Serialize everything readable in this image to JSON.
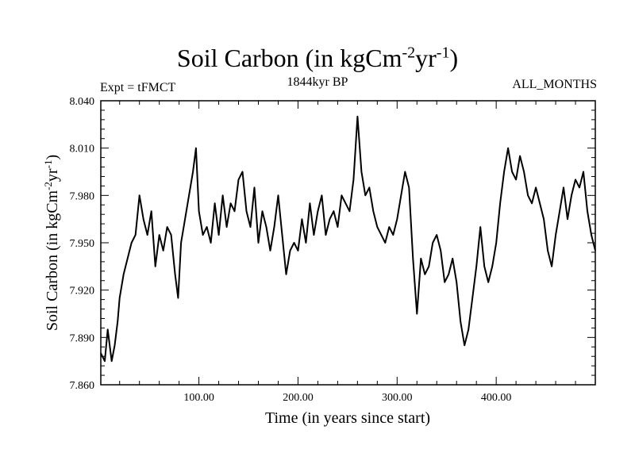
{
  "header": {
    "title": "Soil Carbon (in kgCm",
    "title_exp1": "-2",
    "title_mid": "yr",
    "title_exp2": "-1",
    "title_end": ")",
    "experiment": "Expt = tFMCT",
    "subtitle": "1844kyr BP",
    "months": "ALL_MONTHS"
  },
  "chart_data": {
    "type": "line",
    "title": "Soil Carbon (in kgCm-2yr-1)",
    "xlabel": "Time (in years since start)",
    "ylabel": "Soil Carbon (in kgCm-2yr-1)",
    "ylabel_text": "Soil Carbon (in kgCm",
    "ylabel_exp1": "-2",
    "ylabel_mid": "yr",
    "ylabel_exp2": "-1",
    "ylabel_end": ")",
    "xlim": [
      1,
      500
    ],
    "ylim": [
      7.86,
      8.04
    ],
    "xticks": [
      100,
      200,
      300,
      400
    ],
    "xtick_labels": [
      "100.00",
      "200.00",
      "300.00",
      "400.00"
    ],
    "yticks": [
      7.86,
      7.89,
      7.92,
      7.95,
      7.98,
      8.01,
      8.04
    ],
    "ytick_labels": [
      "7.860",
      "7.890",
      "7.920",
      "7.950",
      "7.980",
      "8.010",
      "8.040"
    ],
    "series": [
      {
        "name": "Soil Carbon",
        "x": [
          1,
          5,
          8,
          12,
          15,
          18,
          20,
          24,
          28,
          32,
          36,
          40,
          44,
          48,
          52,
          56,
          60,
          64,
          68,
          72,
          76,
          79,
          82,
          86,
          90,
          94,
          97,
          100,
          104,
          108,
          112,
          116,
          120,
          124,
          128,
          132,
          136,
          140,
          144,
          148,
          152,
          156,
          160,
          164,
          168,
          172,
          176,
          180,
          184,
          188,
          192,
          196,
          200,
          204,
          208,
          212,
          216,
          220,
          224,
          228,
          232,
          236,
          240,
          244,
          248,
          252,
          256,
          260,
          264,
          268,
          272,
          276,
          280,
          284,
          288,
          292,
          296,
          300,
          304,
          308,
          312,
          316,
          320,
          324,
          328,
          332,
          336,
          340,
          344,
          348,
          352,
          356,
          360,
          364,
          368,
          372,
          376,
          380,
          384,
          388,
          392,
          396,
          400,
          404,
          408,
          412,
          416,
          420,
          424,
          428,
          432,
          436,
          440,
          444,
          448,
          452,
          456,
          460,
          464,
          468,
          472,
          476,
          480,
          484,
          488,
          492,
          496,
          500
        ],
        "y": [
          7.88,
          7.875,
          7.895,
          7.875,
          7.885,
          7.9,
          7.915,
          7.93,
          7.94,
          7.95,
          7.955,
          7.98,
          7.965,
          7.955,
          7.97,
          7.935,
          7.955,
          7.945,
          7.96,
          7.955,
          7.93,
          7.915,
          7.95,
          7.965,
          7.98,
          7.995,
          8.01,
          7.97,
          7.955,
          7.96,
          7.95,
          7.975,
          7.955,
          7.98,
          7.96,
          7.975,
          7.97,
          7.99,
          7.995,
          7.97,
          7.96,
          7.985,
          7.95,
          7.97,
          7.96,
          7.945,
          7.96,
          7.98,
          7.955,
          7.93,
          7.945,
          7.95,
          7.945,
          7.965,
          7.95,
          7.975,
          7.955,
          7.97,
          7.98,
          7.955,
          7.965,
          7.97,
          7.96,
          7.98,
          7.975,
          7.97,
          7.99,
          8.03,
          7.995,
          7.98,
          7.985,
          7.97,
          7.96,
          7.955,
          7.95,
          7.96,
          7.955,
          7.965,
          7.98,
          7.995,
          7.985,
          7.94,
          7.905,
          7.94,
          7.93,
          7.935,
          7.95,
          7.955,
          7.945,
          7.925,
          7.93,
          7.94,
          7.925,
          7.9,
          7.885,
          7.895,
          7.915,
          7.935,
          7.96,
          7.935,
          7.925,
          7.935,
          7.95,
          7.975,
          7.995,
          8.01,
          7.995,
          7.99,
          8.005,
          7.995,
          7.98,
          7.975,
          7.985,
          7.975,
          7.965,
          7.945,
          7.935,
          7.955,
          7.97,
          7.985,
          7.965,
          7.98,
          7.99,
          7.985,
          7.995,
          7.97,
          7.955,
          7.945
        ]
      }
    ]
  }
}
